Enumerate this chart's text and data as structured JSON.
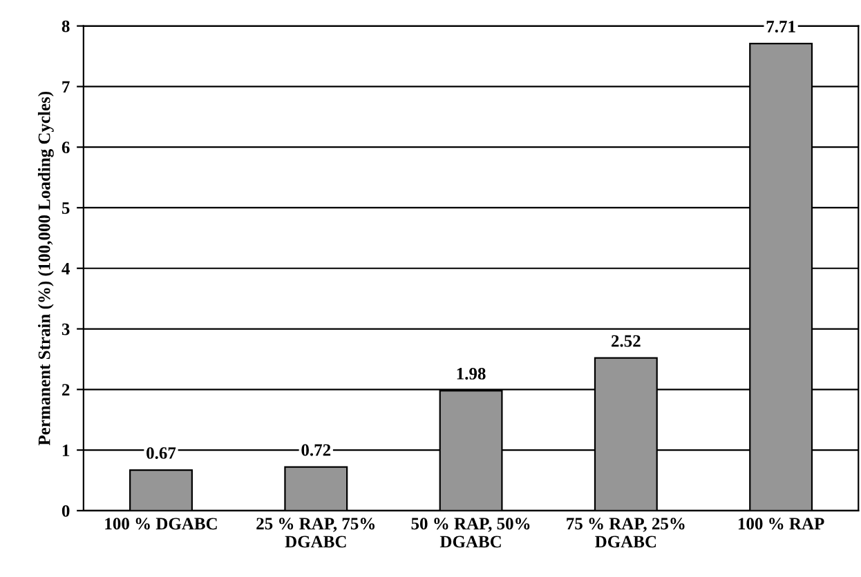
{
  "chart_data": {
    "type": "bar",
    "ylabel": "Permanent Strain (%) (100,000 Loading Cycles)",
    "categories": [
      "100 % DGABC",
      "25 % RAP, 75%\nDGABC",
      "50 % RAP, 50%\nDGABC",
      "75 % RAP, 25%\nDGABC",
      "100 % RAP"
    ],
    "values": [
      0.67,
      0.72,
      1.98,
      2.52,
      7.71
    ],
    "color": "#969696",
    "ylim": [
      0,
      8
    ],
    "yticks": [
      0,
      1,
      2,
      3,
      4,
      5,
      6,
      7,
      8
    ],
    "grid": "y",
    "data_labels": true
  }
}
